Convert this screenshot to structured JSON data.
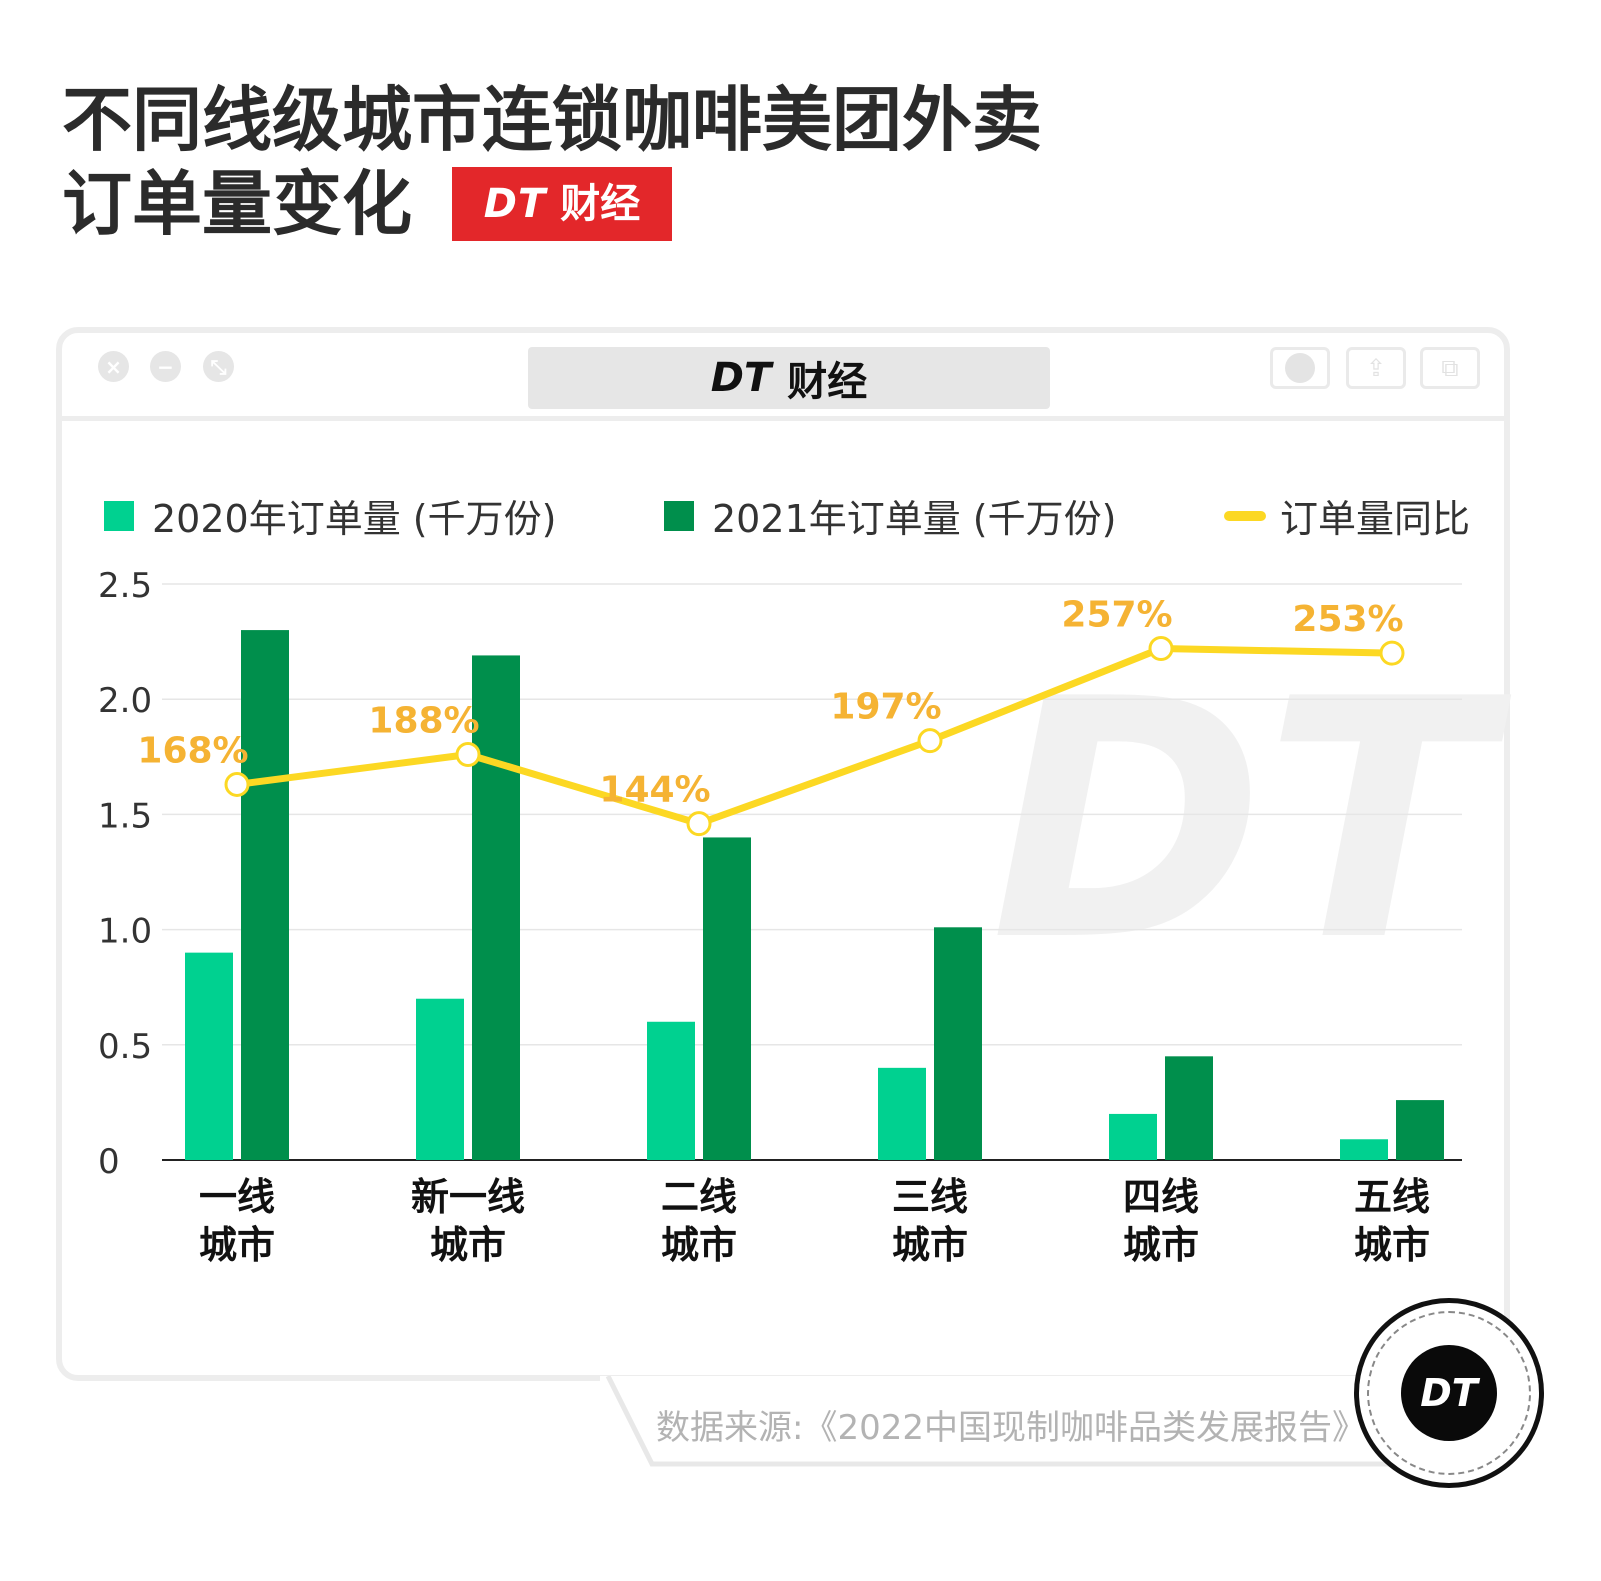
{
  "header": {
    "title_line1": "不同线级城市连锁咖啡美团外卖",
    "title_line2": "订单量变化",
    "brand_badge_dt": "DT",
    "brand_badge_cn": "财经"
  },
  "window": {
    "title_dt": "DT",
    "title_cn": "财经"
  },
  "watermark": "DT",
  "legend": {
    "series1": "2020年订单量 (千万份)",
    "series2": "2021年订单量 (千万份)",
    "series3": "订单量同比"
  },
  "colors": {
    "series_2020": "#00d190",
    "series_2021": "#008f4c",
    "yoy_line": "#fcd823",
    "yoy_label": "#f5b333",
    "badge_red": "#e3272a"
  },
  "chart_data": {
    "type": "bar",
    "categories": [
      "一线\n城市",
      "新一线\n城市",
      "二线\n城市",
      "三线\n城市",
      "四线\n城市",
      "五线\n城市"
    ],
    "series": [
      {
        "name": "2020年订单量 (千万份)",
        "values": [
          0.9,
          0.7,
          0.6,
          0.4,
          0.2,
          0.09
        ]
      },
      {
        "name": "2021年订单量 (千万份)",
        "values": [
          2.3,
          2.19,
          1.4,
          1.01,
          0.45,
          0.26
        ]
      }
    ],
    "line_series": {
      "name": "订单量同比",
      "labels": [
        "168%",
        "188%",
        "144%",
        "197%",
        "257%",
        "253%"
      ],
      "values": [
        1.63,
        1.76,
        1.46,
        1.82,
        2.22,
        2.2
      ]
    },
    "ylim": [
      0,
      2.5
    ],
    "yticks": [
      "0",
      "0.5",
      "1.0",
      "1.5",
      "2.0",
      "2.5"
    ],
    "grid": true,
    "legend_position": "top"
  },
  "footer": {
    "source": "数据来源:《2022中国现制咖啡品类发展报告》",
    "logo": "DT"
  }
}
